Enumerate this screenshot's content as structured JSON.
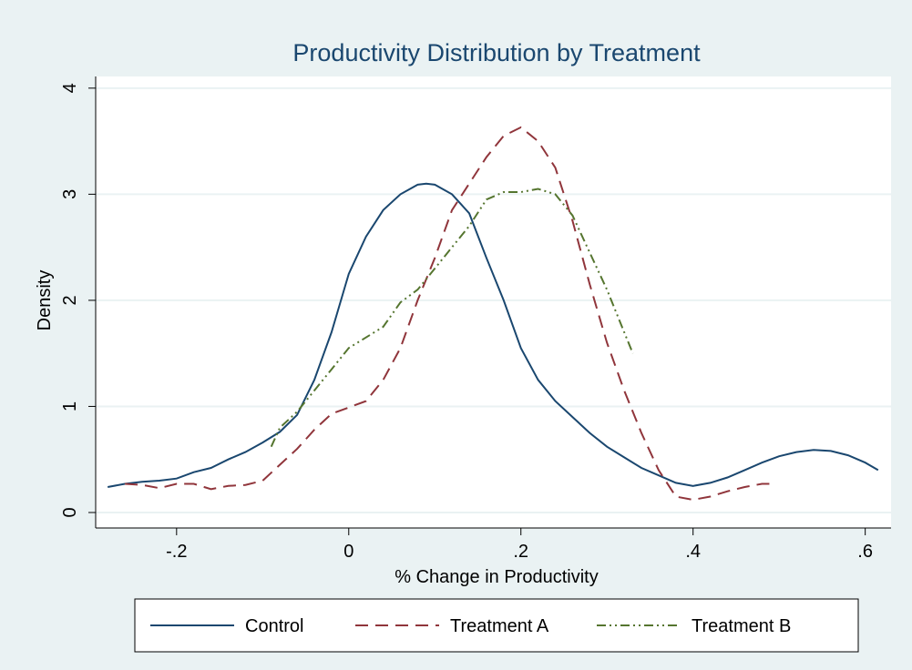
{
  "chart_data": {
    "type": "line",
    "title": "Productivity Distribution by Treatment",
    "x_label": "% Change in Productivity",
    "y_label": "Density",
    "xlim": [
      -0.294,
      0.63
    ],
    "ylim": [
      -0.146,
      4.11
    ],
    "xticks": [
      {
        "value": -0.2,
        "label": "-.2"
      },
      {
        "value": 0,
        "label": "0"
      },
      {
        "value": 0.2,
        "label": ".2"
      },
      {
        "value": 0.4,
        "label": ".4"
      },
      {
        "value": 0.6,
        "label": ".6"
      }
    ],
    "yticks": [
      0,
      1,
      2,
      3,
      4
    ],
    "grid": true,
    "legend": "bottom",
    "series": [
      {
        "name": "Control",
        "color": "#1a476f",
        "style": "solid",
        "x": [
          -0.28,
          -0.26,
          -0.24,
          -0.22,
          -0.2,
          -0.18,
          -0.16,
          -0.14,
          -0.12,
          -0.1,
          -0.08,
          -0.06,
          -0.04,
          -0.02,
          0,
          0.02,
          0.04,
          0.06,
          0.08,
          0.09,
          0.1,
          0.12,
          0.14,
          0.16,
          0.18,
          0.2,
          0.22,
          0.24,
          0.26,
          0.28,
          0.3,
          0.32,
          0.34,
          0.36,
          0.38,
          0.4,
          0.42,
          0.44,
          0.46,
          0.48,
          0.5,
          0.52,
          0.54,
          0.56,
          0.58,
          0.6,
          0.615
        ],
        "values": [
          0.24,
          0.27,
          0.29,
          0.3,
          0.32,
          0.38,
          0.42,
          0.5,
          0.57,
          0.66,
          0.76,
          0.92,
          1.25,
          1.7,
          2.25,
          2.6,
          2.85,
          3.0,
          3.09,
          3.1,
          3.09,
          3.0,
          2.82,
          2.4,
          2.0,
          1.55,
          1.25,
          1.05,
          0.9,
          0.75,
          0.62,
          0.52,
          0.42,
          0.35,
          0.28,
          0.25,
          0.28,
          0.33,
          0.4,
          0.47,
          0.53,
          0.57,
          0.59,
          0.58,
          0.54,
          0.47,
          0.4
        ]
      },
      {
        "name": "Treatment A",
        "color": "#90353b",
        "style": "dash",
        "x": [
          -0.26,
          -0.24,
          -0.22,
          -0.2,
          -0.18,
          -0.16,
          -0.14,
          -0.12,
          -0.1,
          -0.08,
          -0.06,
          -0.04,
          -0.02,
          0,
          0.02,
          0.04,
          0.06,
          0.08,
          0.1,
          0.12,
          0.14,
          0.16,
          0.18,
          0.2,
          0.22,
          0.24,
          0.26,
          0.28,
          0.3,
          0.32,
          0.34,
          0.36,
          0.38,
          0.4,
          0.42,
          0.44,
          0.46,
          0.48,
          0.495
        ],
        "values": [
          0.27,
          0.26,
          0.23,
          0.27,
          0.27,
          0.22,
          0.25,
          0.26,
          0.3,
          0.45,
          0.6,
          0.78,
          0.93,
          0.99,
          1.05,
          1.25,
          1.55,
          2.0,
          2.4,
          2.85,
          3.1,
          3.35,
          3.55,
          3.63,
          3.5,
          3.25,
          2.75,
          2.15,
          1.6,
          1.15,
          0.75,
          0.4,
          0.15,
          0.12,
          0.15,
          0.2,
          0.24,
          0.27,
          0.27
        ]
      },
      {
        "name": "Treatment B",
        "color": "#55752f",
        "style": "dash-dot-dot",
        "x": [
          -0.09,
          -0.08,
          -0.06,
          -0.04,
          -0.02,
          0,
          0.02,
          0.04,
          0.06,
          0.08,
          0.1,
          0.12,
          0.14,
          0.16,
          0.18,
          0.2,
          0.22,
          0.24,
          0.26,
          0.28,
          0.3,
          0.32,
          0.33
        ],
        "values": [
          0.62,
          0.8,
          0.95,
          1.15,
          1.35,
          1.55,
          1.65,
          1.75,
          1.98,
          2.1,
          2.3,
          2.5,
          2.7,
          2.95,
          3.02,
          3.02,
          3.05,
          3.0,
          2.8,
          2.45,
          2.1,
          1.7,
          1.5
        ]
      }
    ]
  }
}
